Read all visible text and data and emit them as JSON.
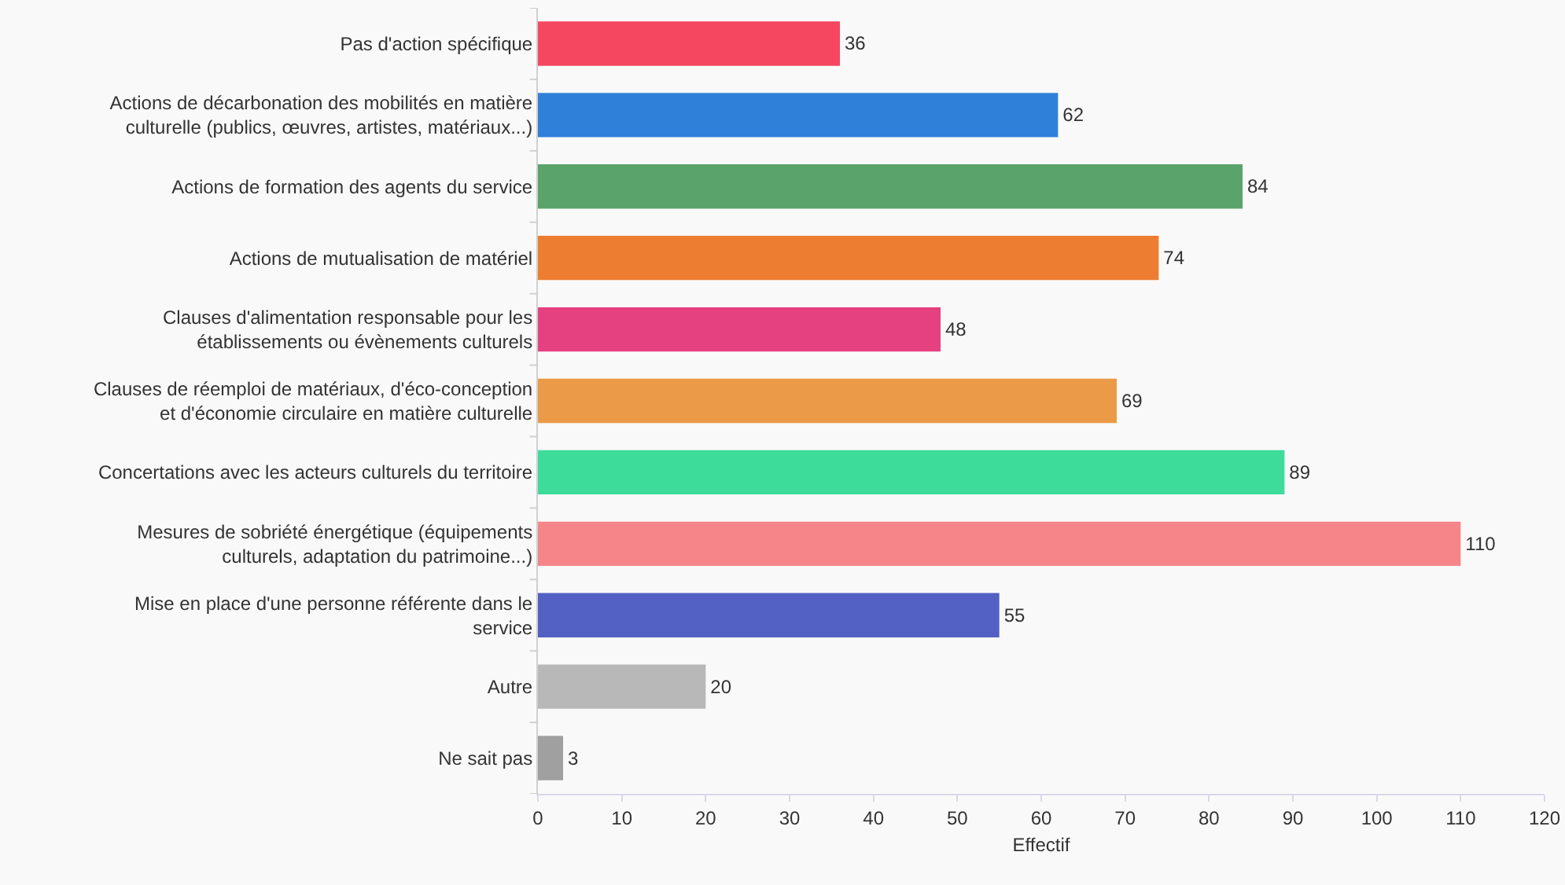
{
  "chart_data": {
    "type": "bar",
    "orientation": "horizontal",
    "xlabel": "Effectif",
    "categories": [
      "Pas d'action spécifique",
      "Actions de décarbonation des mobilités en matière\nculturelle (publics, œuvres, artistes, matériaux...)",
      "Actions de formation des agents du service",
      "Actions de mutualisation de matériel",
      "Clauses d'alimentation responsable pour les\nétablissements ou évènements culturels",
      "Clauses de réemploi de matériaux, d'éco-conception\net d'économie circulaire en matière culturelle",
      "Concertations avec les acteurs culturels du territoire",
      "Mesures de sobriété énergétique (équipements\nculturels, adaptation du patrimoine...)",
      "Mise en place d'une personne référente dans le\nservice",
      "Autre",
      "Ne sait pas"
    ],
    "values": [
      36,
      62,
      84,
      74,
      48,
      69,
      89,
      110,
      55,
      20,
      3
    ],
    "colors": [
      "#f5475f",
      "#2f80d9",
      "#5aa46c",
      "#ed7d31",
      "#e54080",
      "#eb9a48",
      "#3ddc9a",
      "#f6858a",
      "#5361c4",
      "#b8b8b8",
      "#a0a0a0"
    ],
    "xlim": [
      0,
      120
    ],
    "xticks": [
      0,
      10,
      20,
      30,
      40,
      50,
      60,
      70,
      80,
      90,
      100,
      110,
      120
    ],
    "data_labels": true,
    "grid": false,
    "legend": false
  }
}
